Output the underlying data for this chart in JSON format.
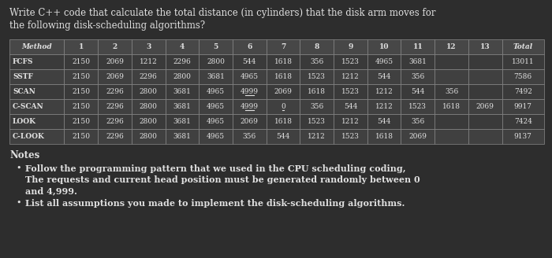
{
  "title_line1": "Write C++ code that calculate the total distance (in cylinders) that the disk arm moves for",
  "title_line2": "the following disk-scheduling algorithms?",
  "bg_color": "#2d2d2d",
  "text_color": "#e0e0e0",
  "table_header_bg": "#474747",
  "table_row_bg1": "#3a3a3a",
  "table_row_bg2": "#404040",
  "table_border": "#888888",
  "header_row": [
    "Method",
    "1",
    "2",
    "3",
    "4",
    "5",
    "6",
    "7",
    "8",
    "9",
    "10",
    "11",
    "12",
    "13",
    "Total"
  ],
  "rows": [
    [
      "FCFS",
      "2150",
      "2069",
      "1212",
      "2296",
      "2800",
      "544",
      "1618",
      "356",
      "1523",
      "4965",
      "3681",
      "",
      "",
      "13011"
    ],
    [
      "SSTF",
      "2150",
      "2069",
      "2296",
      "2800",
      "3681",
      "4965",
      "1618",
      "1523",
      "1212",
      "544",
      "356",
      "",
      "",
      "7586"
    ],
    [
      "SCAN",
      "2150",
      "2296",
      "2800",
      "3681",
      "4965",
      "4999",
      "2069",
      "1618",
      "1523",
      "1212",
      "544",
      "356",
      "",
      "7492"
    ],
    [
      "C-SCAN",
      "2150",
      "2296",
      "2800",
      "3681",
      "4965",
      "4999",
      "0",
      "356",
      "544",
      "1212",
      "1523",
      "1618",
      "2069",
      "9917"
    ],
    [
      "LOOK",
      "2150",
      "2296",
      "2800",
      "3681",
      "4965",
      "2069",
      "1618",
      "1523",
      "1212",
      "544",
      "356",
      "",
      "",
      "7424"
    ],
    [
      "C-LOOK",
      "2150",
      "2296",
      "2800",
      "3681",
      "4965",
      "356",
      "544",
      "1212",
      "1523",
      "1618",
      "2069",
      "",
      "",
      "9137"
    ]
  ],
  "notes_title": "Notes",
  "bullet1_line1": "Follow the programming pattern that we used in the CPU scheduling coding,",
  "bullet1_line2": "The requests and current head position must be generated randomly between 0",
  "bullet1_line3": "and 4,999.",
  "bullet2": "List all assumptions you made to implement the disk-scheduling algorithms.",
  "title_fontsize": 8.5,
  "table_fontsize": 6.5,
  "notes_fontsize": 8.5,
  "bullet_fontsize": 8.0
}
